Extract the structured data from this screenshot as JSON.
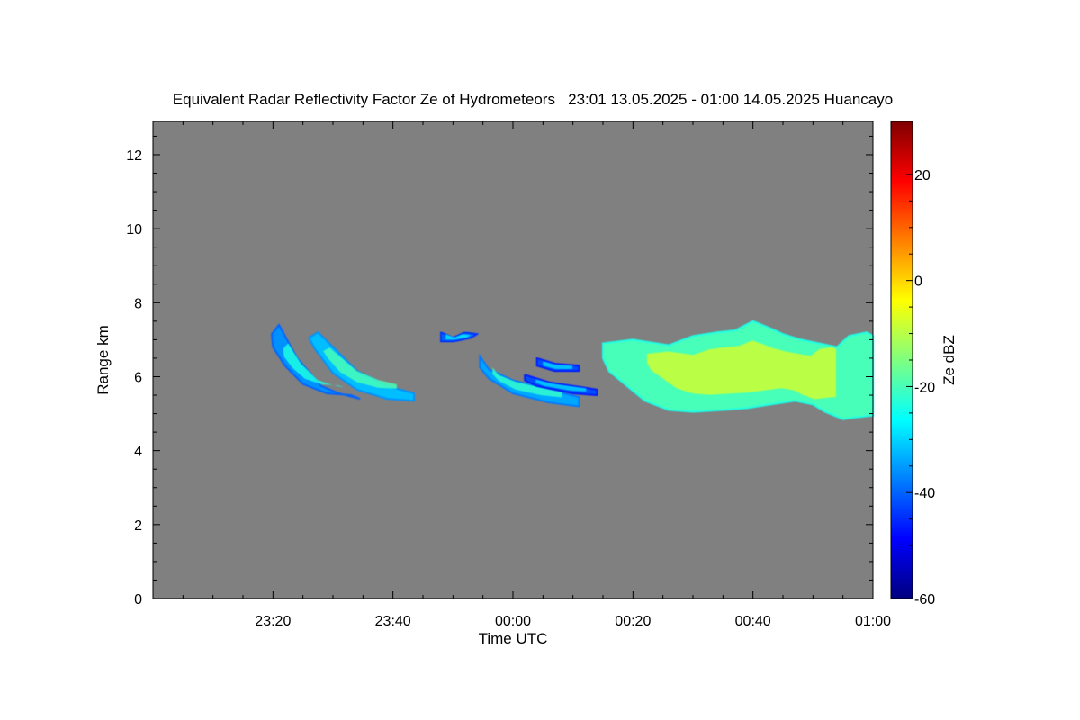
{
  "chart_data": {
    "type": "heatmap",
    "title": "Equivalent Radar Reflectivity Factor Ze of Hydrometeors   23:01 13.05.2025 - 01:00 14.05.2025 Huancayo",
    "xlabel": "Time UTC",
    "ylabel": "Range km",
    "colorbar_label": "Ze dBZ",
    "x_range_minutes_since_2300": [
      1,
      120
    ],
    "x_ticks": [
      {
        "minutes": 20,
        "label": "23:20"
      },
      {
        "minutes": 40,
        "label": "23:40"
      },
      {
        "minutes": 60,
        "label": "00:00"
      },
      {
        "minutes": 80,
        "label": "00:20"
      },
      {
        "minutes": 100,
        "label": "00:40"
      },
      {
        "minutes": 120,
        "label": "01:00"
      }
    ],
    "ylim": [
      0,
      12.9
    ],
    "y_ticks": [
      0,
      2,
      4,
      6,
      8,
      10,
      12
    ],
    "colorbar_range": [
      -60,
      30
    ],
    "colorbar_ticks": [
      -60,
      -40,
      -20,
      0,
      20
    ],
    "background_color": "#808080",
    "echoes": [
      {
        "name": "streak-1",
        "points": [
          [
            19.8,
            7.15
          ],
          [
            21,
            7.4
          ],
          [
            24,
            6.5
          ],
          [
            28,
            5.75
          ],
          [
            31,
            5.55
          ],
          [
            34.5,
            5.4
          ],
          [
            33,
            5.5
          ],
          [
            29,
            5.55
          ],
          [
            25,
            5.8
          ],
          [
            22,
            6.3
          ],
          [
            20,
            6.8
          ]
        ],
        "core": -24
      },
      {
        "name": "streak-2",
        "points": [
          [
            26,
            7.05
          ],
          [
            27.5,
            7.2
          ],
          [
            30,
            6.8
          ],
          [
            34,
            6.15
          ],
          [
            39,
            5.75
          ],
          [
            43.5,
            5.55
          ],
          [
            43.5,
            5.35
          ],
          [
            39,
            5.4
          ],
          [
            34,
            5.65
          ],
          [
            30,
            6.1
          ],
          [
            27,
            6.75
          ]
        ],
        "core": -20
      },
      {
        "name": "patch-3",
        "points": [
          [
            48,
            7.2
          ],
          [
            50,
            7.05
          ],
          [
            52,
            7.2
          ],
          [
            54,
            7.15
          ],
          [
            53,
            7.05
          ],
          [
            50,
            6.95
          ],
          [
            48,
            6.95
          ]
        ],
        "core": -28
      },
      {
        "name": "streak-4",
        "points": [
          [
            54.5,
            6.55
          ],
          [
            56,
            6.2
          ],
          [
            60,
            5.9
          ],
          [
            66,
            5.65
          ],
          [
            71,
            5.45
          ],
          [
            71,
            5.2
          ],
          [
            66,
            5.3
          ],
          [
            60,
            5.55
          ],
          [
            56,
            5.95
          ],
          [
            54.5,
            6.25
          ]
        ],
        "core": -22
      },
      {
        "name": "streak-5",
        "points": [
          [
            62,
            6.05
          ],
          [
            66,
            5.85
          ],
          [
            72,
            5.7
          ],
          [
            74,
            5.65
          ],
          [
            74,
            5.5
          ],
          [
            70,
            5.55
          ],
          [
            64,
            5.75
          ],
          [
            62,
            5.9
          ]
        ],
        "core": -30
      },
      {
        "name": "fragment-6",
        "points": [
          [
            64,
            6.5
          ],
          [
            67,
            6.35
          ],
          [
            71,
            6.3
          ],
          [
            71,
            6.15
          ],
          [
            67,
            6.15
          ],
          [
            64,
            6.3
          ]
        ],
        "core": -30
      },
      {
        "name": "main-cloud",
        "points": [
          [
            75,
            6.9
          ],
          [
            80,
            7.0
          ],
          [
            86,
            6.85
          ],
          [
            90,
            7.1
          ],
          [
            94,
            7.2
          ],
          [
            97,
            7.25
          ],
          [
            100,
            7.5
          ],
          [
            103,
            7.3
          ],
          [
            105,
            7.15
          ],
          [
            108,
            7.0
          ],
          [
            111,
            6.9
          ],
          [
            114,
            6.8
          ],
          [
            116,
            7.1
          ],
          [
            119,
            7.2
          ],
          [
            120,
            7.1
          ],
          [
            120,
            4.95
          ],
          [
            117,
            4.9
          ],
          [
            115,
            4.85
          ],
          [
            112,
            5.05
          ],
          [
            110,
            5.25
          ],
          [
            107,
            5.35
          ],
          [
            103,
            5.25
          ],
          [
            99,
            5.15
          ],
          [
            95,
            5.1
          ],
          [
            90,
            5.05
          ],
          [
            86,
            5.1
          ],
          [
            82,
            5.35
          ],
          [
            79,
            5.75
          ],
          [
            76,
            6.15
          ],
          [
            75,
            6.5
          ]
        ],
        "core": -8
      }
    ]
  }
}
